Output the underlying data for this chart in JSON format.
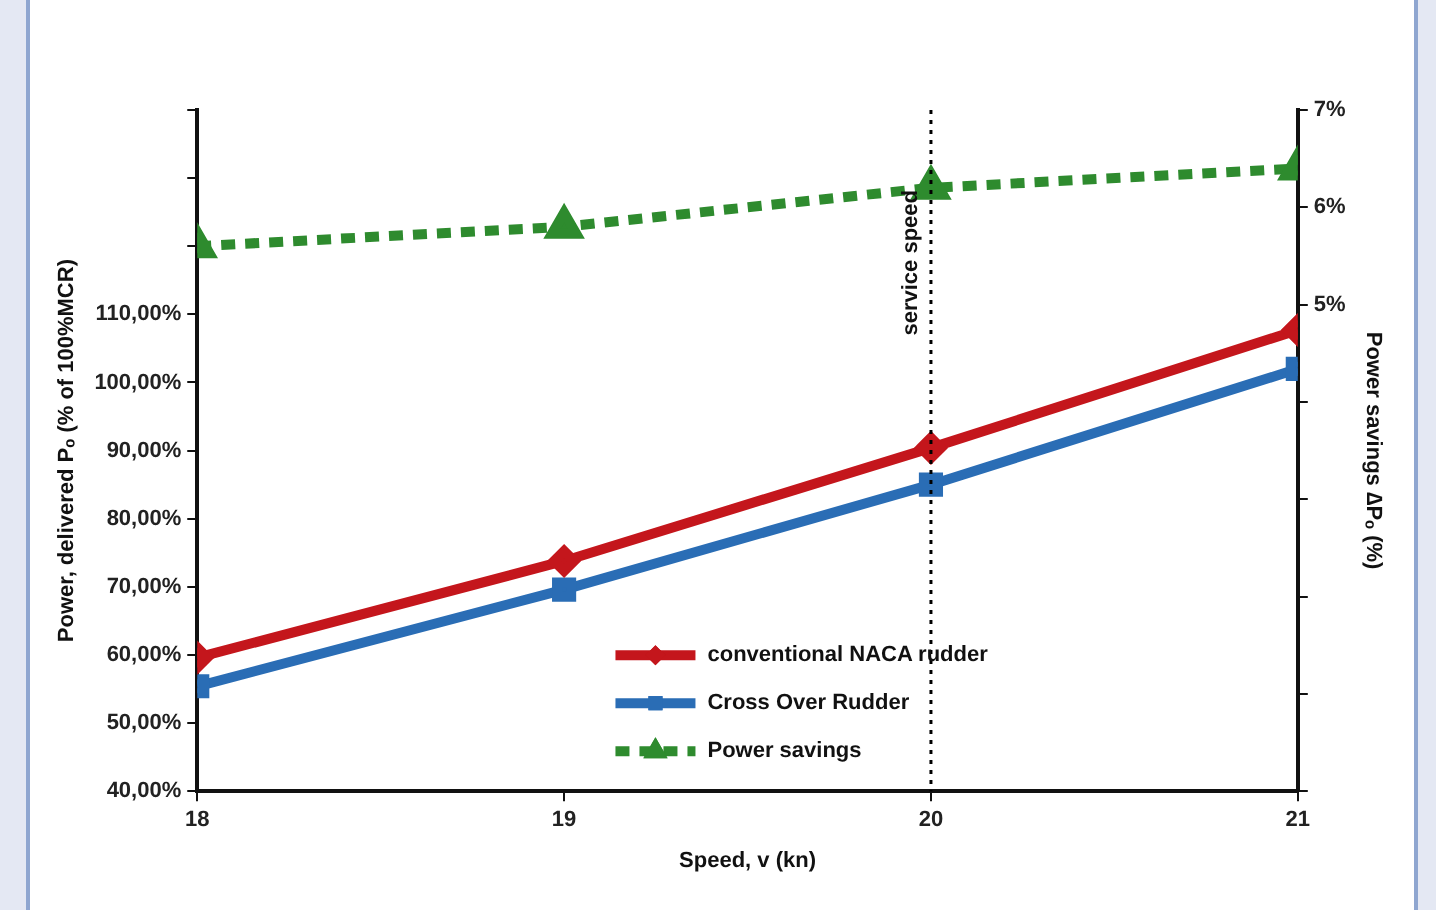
{
  "chart_data": {
    "type": "line",
    "xlabel": "Speed, v (kn)",
    "ylabel": "Power, delivered Pₒ (% of 100%MCR)",
    "y2label": "Power savings ∆Pₒ (%)",
    "x": [
      18,
      19,
      20,
      21
    ],
    "xlim": [
      18,
      21
    ],
    "xticks": [
      18,
      19,
      20,
      21
    ],
    "ylim": [
      40,
      140
    ],
    "yticks": [
      {
        "value": 40,
        "label": "40,00%"
      },
      {
        "value": 50,
        "label": "50,00%"
      },
      {
        "value": 60,
        "label": "60,00%"
      },
      {
        "value": 70,
        "label": "70,00%"
      },
      {
        "value": 80,
        "label": "80,00%"
      },
      {
        "value": 90,
        "label": "90,00%"
      },
      {
        "value": 100,
        "label": "100,00%"
      },
      {
        "value": 110,
        "label": "110,00%"
      },
      {
        "value": 120,
        "label": null
      },
      {
        "value": 130,
        "label": null
      },
      {
        "value": 140,
        "label": null
      }
    ],
    "y2lim": [
      0,
      7
    ],
    "y2ticks": [
      {
        "value": 0,
        "label": null
      },
      {
        "value": 1,
        "label": null
      },
      {
        "value": 2,
        "label": null
      },
      {
        "value": 3,
        "label": null
      },
      {
        "value": 4,
        "label": null
      },
      {
        "value": 5,
        "label": "5%"
      },
      {
        "value": 6,
        "label": "6%"
      },
      {
        "value": 7,
        "label": "7%"
      }
    ],
    "series": [
      {
        "name": "conventional NACA rudder",
        "color": "#c4161c",
        "values": [
          59.6,
          73.8,
          90.4,
          107.7
        ],
        "marker": "diamond",
        "line_style": "solid"
      },
      {
        "name": "Cross Over Rudder",
        "color": "#2a6db5",
        "values": [
          55.4,
          69.6,
          85.0,
          102.0
        ],
        "marker": "square",
        "line_style": "solid"
      },
      {
        "name": "Power savings",
        "color": "#2e8b2e",
        "values": [
          5.6,
          5.8,
          6.2,
          6.4
        ],
        "marker": "triangle",
        "line_style": "dashed",
        "axis": "y2"
      }
    ],
    "ref_lines": [
      {
        "axis": "x",
        "value": 20,
        "label": "service speed",
        "line_style": "dotted",
        "color": "#000000"
      }
    ],
    "legend": "bottom",
    "grid": false
  }
}
